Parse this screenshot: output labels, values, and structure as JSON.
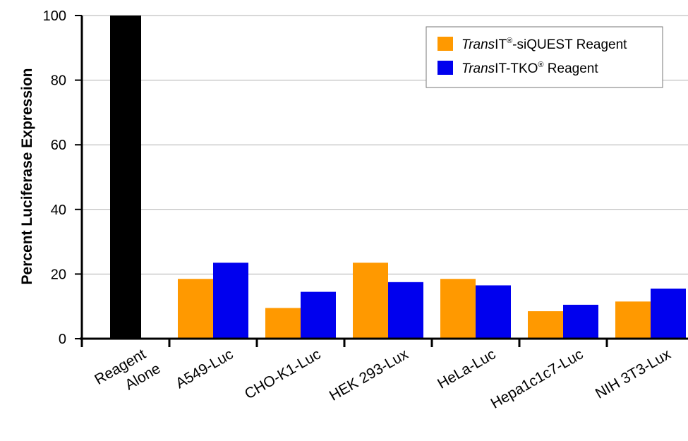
{
  "chart_data": {
    "type": "bar",
    "ylabel": "Percent Luciferase Expression",
    "xlabel": "",
    "ylim": [
      0,
      100
    ],
    "yticks": [
      0,
      20,
      40,
      60,
      80,
      100
    ],
    "grid": true,
    "legend_position": "top-right",
    "categories": [
      "Reagent Alone",
      "A549-Luc",
      "CHO-K1-Luc",
      "HEK 293-Lux",
      "HeLa-Luc",
      "Hepa1c1c7-Luc",
      "NIH 3T3-Lux"
    ],
    "control": {
      "category": "Reagent Alone",
      "value": 100,
      "color": "#000000"
    },
    "series": [
      {
        "name": "TransIT®-siQUEST Reagent",
        "name_parts": [
          "Trans",
          "IT",
          "®",
          "-siQUEST Reagent"
        ],
        "color": "#ff9900",
        "values": [
          null,
          18.5,
          9.5,
          23.5,
          18.5,
          8.5,
          11.5
        ]
      },
      {
        "name": "TransIT-TKO® Reagent",
        "name_parts": [
          "Trans",
          "IT-TKO",
          "®",
          " Reagent"
        ],
        "color": "#0000ee",
        "values": [
          null,
          23.5,
          14.5,
          17.5,
          16.5,
          10.5,
          15.5
        ]
      }
    ]
  }
}
